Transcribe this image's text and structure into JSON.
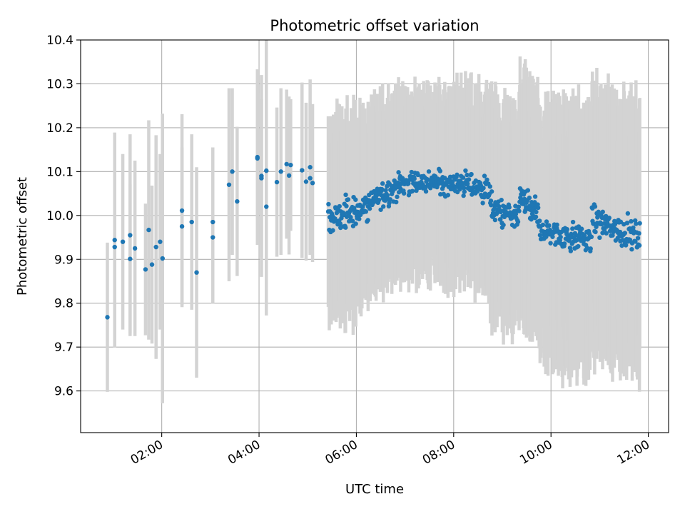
{
  "chart_data": {
    "type": "scatter",
    "title": "Photometric offset variation",
    "xlabel": "UTC time",
    "ylabel": "Photometric offset",
    "xlim": [
      "00:20",
      "12:25"
    ],
    "ylim": [
      9.505,
      10.4
    ],
    "x_ticks": [
      "02:00",
      "04:00",
      "06:00",
      "08:00",
      "10:00",
      "12:00"
    ],
    "y_ticks": [
      9.6,
      9.7,
      9.8,
      9.9,
      10.0,
      10.1,
      10.2,
      10.3,
      10.4
    ],
    "y_tick_labels": [
      "9.6",
      "9.7",
      "9.8",
      "9.9",
      "10.0",
      "10.1",
      "10.2",
      "10.3",
      "10.4"
    ],
    "grid": true,
    "legend": "none",
    "series": [
      {
        "points": [
          {
            "t": "00:53",
            "y": 9.768,
            "err": 0.17
          },
          {
            "t": "01:02",
            "y": 9.944,
            "err": 0.245
          },
          {
            "t": "01:02",
            "y": 9.928,
            "err": 0.2
          },
          {
            "t": "01:12",
            "y": 9.94,
            "err": 0.2
          },
          {
            "t": "01:21",
            "y": 9.901,
            "err": 0.17
          },
          {
            "t": "01:21",
            "y": 9.955,
            "err": 0.23
          },
          {
            "t": "01:27",
            "y": 9.925,
            "err": 0.2
          },
          {
            "t": "01:40",
            "y": 9.877,
            "err": 0.15
          },
          {
            "t": "01:44",
            "y": 9.967,
            "err": 0.25
          },
          {
            "t": "01:48",
            "y": 9.888,
            "err": 0.18
          },
          {
            "t": "01:53",
            "y": 9.928,
            "err": 0.255
          },
          {
            "t": "01:58",
            "y": 9.94,
            "err": 0.2
          },
          {
            "t": "02:01",
            "y": 9.902,
            "err": 0.33
          },
          {
            "t": "02:25",
            "y": 9.975,
            "err": 0.18
          },
          {
            "t": "02:25",
            "y": 10.011,
            "err": 0.22
          },
          {
            "t": "02:37",
            "y": 9.985,
            "err": 0.2
          },
          {
            "t": "02:43",
            "y": 9.87,
            "err": 0.24
          },
          {
            "t": "03:03",
            "y": 9.985,
            "err": 0.17
          },
          {
            "t": "03:03",
            "y": 9.95,
            "err": 0.15
          },
          {
            "t": "03:23",
            "y": 10.07,
            "err": 0.22
          },
          {
            "t": "03:27",
            "y": 10.1,
            "err": 0.19
          },
          {
            "t": "03:33",
            "y": 10.032,
            "err": 0.17
          },
          {
            "t": "03:58",
            "y": 10.133,
            "err": 0.2
          },
          {
            "t": "03:58",
            "y": 10.13,
            "err": 0.15
          },
          {
            "t": "04:03",
            "y": 10.09,
            "err": 0.23
          },
          {
            "t": "04:03",
            "y": 10.085,
            "err": 0.18
          },
          {
            "t": "04:09",
            "y": 10.102,
            "err": 0.33
          },
          {
            "t": "04:09",
            "y": 10.02,
            "err": 0.15
          },
          {
            "t": "04:22",
            "y": 10.076,
            "err": 0.17
          },
          {
            "t": "04:27",
            "y": 10.1,
            "err": 0.19
          },
          {
            "t": "04:34",
            "y": 10.117,
            "err": 0.17
          },
          {
            "t": "04:37",
            "y": 10.091,
            "err": 0.18
          },
          {
            "t": "04:39",
            "y": 10.115,
            "err": 0.15
          },
          {
            "t": "04:53",
            "y": 10.103,
            "err": 0.2
          },
          {
            "t": "04:58",
            "y": 10.077,
            "err": 0.18
          },
          {
            "t": "05:03",
            "y": 10.11,
            "err": 0.2
          },
          {
            "t": "05:03",
            "y": 10.085,
            "err": 0.17
          },
          {
            "t": "05:06",
            "y": 10.074,
            "err": 0.18
          }
        ],
        "dense_segments": [
          {
            "from": "05:25",
            "to": "06:15",
            "start": 9.99,
            "end": 10.02,
            "n": 85,
            "err": 0.2,
            "scatter": 0.035
          },
          {
            "from": "06:15",
            "to": "07:00",
            "start": 10.03,
            "end": 10.075,
            "n": 80,
            "err": 0.19,
            "scatter": 0.03
          },
          {
            "from": "07:00",
            "to": "08:00",
            "start": 10.075,
            "end": 10.075,
            "n": 110,
            "err": 0.19,
            "scatter": 0.025
          },
          {
            "from": "08:00",
            "to": "08:45",
            "start": 10.075,
            "end": 10.06,
            "n": 75,
            "err": 0.2,
            "scatter": 0.03
          },
          {
            "from": "08:45",
            "to": "09:20",
            "start": 10.02,
            "end": 9.985,
            "n": 65,
            "err": 0.22,
            "scatter": 0.03
          },
          {
            "from": "09:20",
            "to": "09:45",
            "start": 10.045,
            "end": 9.995,
            "n": 50,
            "err": 0.25,
            "scatter": 0.035
          },
          {
            "from": "09:45",
            "to": "10:50",
            "start": 9.965,
            "end": 9.945,
            "n": 110,
            "err": 0.26,
            "scatter": 0.03
          },
          {
            "from": "10:50",
            "to": "11:50",
            "start": 9.99,
            "end": 9.95,
            "n": 100,
            "err": 0.27,
            "scatter": 0.03
          }
        ]
      }
    ],
    "colors": {
      "marker": "#1f77b4",
      "errorbar": "#d3d3d3",
      "grid": "#b0b0b0",
      "axes": "#000000"
    }
  }
}
